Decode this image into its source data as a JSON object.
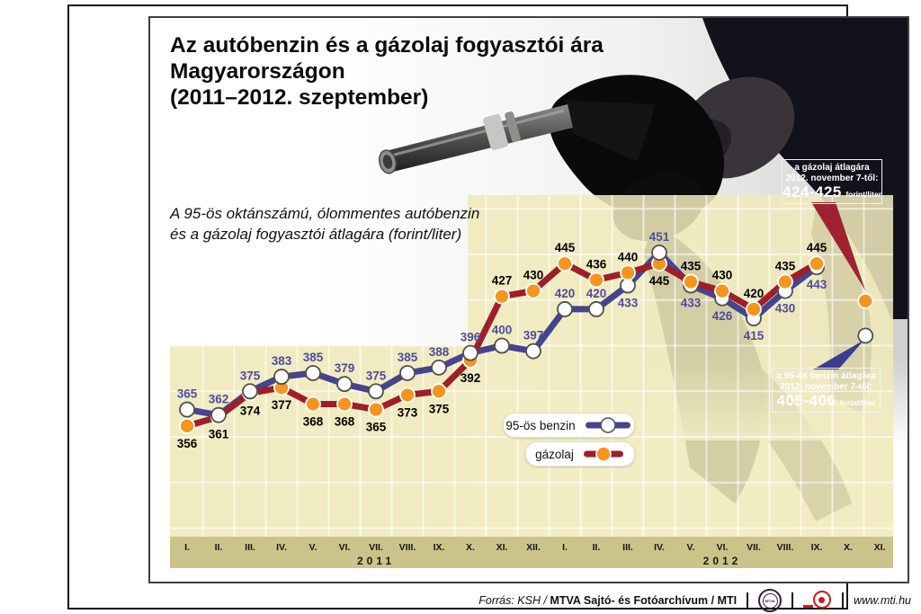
{
  "title": {
    "line1": "Az autóbenzin és a gázolaj fogyasztói ára",
    "line2": "Magyarországon",
    "line3": "(2011–2012. szeptember)"
  },
  "subtitle": {
    "line1": "A 95-ös oktánszámú, ólommentes autóbenzin",
    "line2": "és a gázolaj fogyasztói átlagára (forint/liter)"
  },
  "legend": {
    "benzin_label": "95-ös benzin",
    "gazolaj_label": "gázolaj"
  },
  "callouts": {
    "gazolaj": {
      "line1": "a gázolaj átlagára",
      "line2": "2012. november 7-től:",
      "value": "424-425",
      "unit": "forint/liter",
      "color": "#9f2232"
    },
    "benzin": {
      "line1": "a 95-ös benzin átlagára",
      "line2": "2012. november 7-től:",
      "value": "405-406",
      "unit": "forint/liter",
      "color": "#3d3c8e"
    }
  },
  "footer": {
    "source_prefix": "Forrás: KSH /",
    "source_main": "MTVA Sajtó- és Fotóarchívum / MTI",
    "mtva_logo_text": "MTVA",
    "website": "www.mti.hu"
  },
  "chart_data": {
    "type": "line",
    "title": "Az autóbenzin és a gázolaj fogyasztói ára Magyarországon (2011–2012. szeptember)",
    "ylabel": "forint/liter",
    "ylim": [
      295,
      485
    ],
    "grid_step": 25,
    "grid": true,
    "plot_bg": "#f0e9ba",
    "axis_bg": "#cbc48a",
    "x_groups": [
      {
        "year": "2011",
        "months": [
          "I.",
          "II.",
          "III.",
          "IV.",
          "V.",
          "VI.",
          "VII.",
          "VIII.",
          "IX.",
          "X.",
          "XI.",
          "XII."
        ]
      },
      {
        "year": "2012",
        "months": [
          "I.",
          "II.",
          "III.",
          "IV.",
          "V.",
          "VI.",
          "VII.",
          "VIII.",
          "IX.",
          "X.",
          "XI."
        ]
      }
    ],
    "series": [
      {
        "name": "95-ös benzin",
        "line_color": "#45448e",
        "marker_fill": "#ffffff",
        "marker_stroke": "#4f4f4f",
        "label_color": "#4d4c9e",
        "values": [
          365,
          362,
          375,
          383,
          385,
          379,
          375,
          385,
          388,
          396,
          400,
          397,
          420,
          420,
          433,
          451,
          433,
          426,
          415,
          430,
          443
        ],
        "label_sides": [
          "a",
          "a",
          "a",
          "a",
          "a",
          "a",
          "a",
          "a",
          "a",
          "a",
          "a",
          "a",
          "a",
          "a",
          "b",
          "a",
          "b",
          "b",
          "b",
          "b",
          "b"
        ]
      },
      {
        "name": "gázolaj",
        "line_color": "#9e1e29",
        "marker_fill": "#f7941e",
        "marker_stroke": "#ffffff",
        "label_color": "#000000",
        "values": [
          356,
          361,
          374,
          377,
          368,
          368,
          365,
          373,
          375,
          392,
          427,
          430,
          445,
          436,
          440,
          445,
          435,
          430,
          420,
          435,
          445
        ],
        "label_sides": [
          "b",
          "b",
          "b",
          "b",
          "b",
          "b",
          "b",
          "b",
          "b",
          "b",
          "a",
          "a",
          "a",
          "a",
          "a",
          "b",
          "a",
          "a",
          "a",
          "a",
          "a"
        ]
      }
    ],
    "extra_points": [
      {
        "series": 1,
        "value": 424.5,
        "display": "424-425",
        "x_index": 21.55
      },
      {
        "series": 0,
        "value": 405.5,
        "display": "405-406",
        "x_index": 21.55
      }
    ]
  }
}
